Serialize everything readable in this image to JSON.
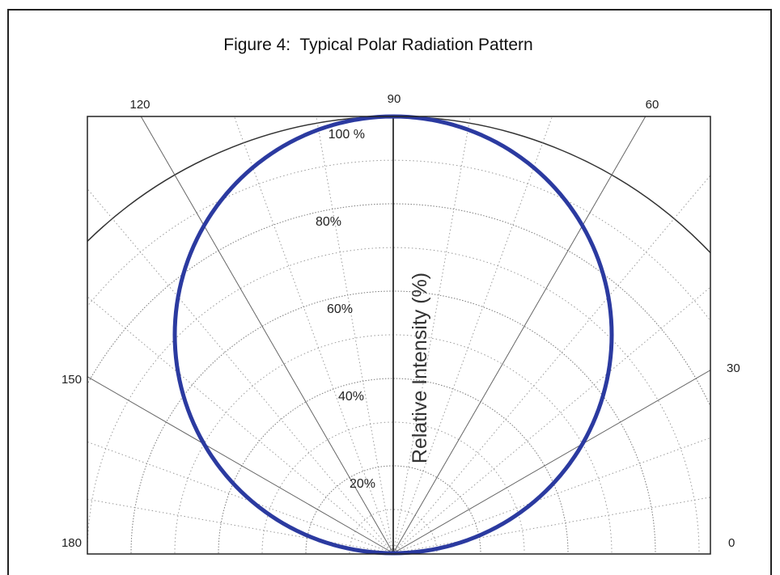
{
  "chart_data": {
    "type": "polar",
    "title": "Figure 4:  Typical Polar Radiation Pattern",
    "axis_title": "Relative Intensity (%)",
    "angle_unit": "degrees",
    "angle_range": [
      0,
      180
    ],
    "angle_tick_labels": [
      {
        "angle": 0,
        "label": "0"
      },
      {
        "angle": 30,
        "label": "30"
      },
      {
        "angle": 60,
        "label": "60"
      },
      {
        "angle": 90,
        "label": "90"
      },
      {
        "angle": 120,
        "label": "120"
      },
      {
        "angle": 150,
        "label": "150"
      },
      {
        "angle": 180,
        "label": "180"
      }
    ],
    "radial_range": [
      0,
      100
    ],
    "radial_tick_labels": [
      {
        "value": 20,
        "label": "20%"
      },
      {
        "value": 40,
        "label": "40%"
      },
      {
        "value": 60,
        "label": "60%"
      },
      {
        "value": 80,
        "label": "80%"
      },
      {
        "value": 100,
        "label": "100 %"
      }
    ],
    "grid": true,
    "series": [
      {
        "color": "#2b3aa0",
        "pattern": "relative_intensity = 100 * sin(angle)",
        "points": [
          {
            "angle": 0,
            "value": 0
          },
          {
            "angle": 15,
            "value": 26
          },
          {
            "angle": 30,
            "value": 50
          },
          {
            "angle": 45,
            "value": 71
          },
          {
            "angle": 60,
            "value": 87
          },
          {
            "angle": 75,
            "value": 97
          },
          {
            "angle": 90,
            "value": 100
          },
          {
            "angle": 105,
            "value": 97
          },
          {
            "angle": 120,
            "value": 87
          },
          {
            "angle": 135,
            "value": 71
          },
          {
            "angle": 150,
            "value": 50
          },
          {
            "angle": 165,
            "value": 26
          },
          {
            "angle": 180,
            "value": 0
          }
        ]
      }
    ]
  }
}
